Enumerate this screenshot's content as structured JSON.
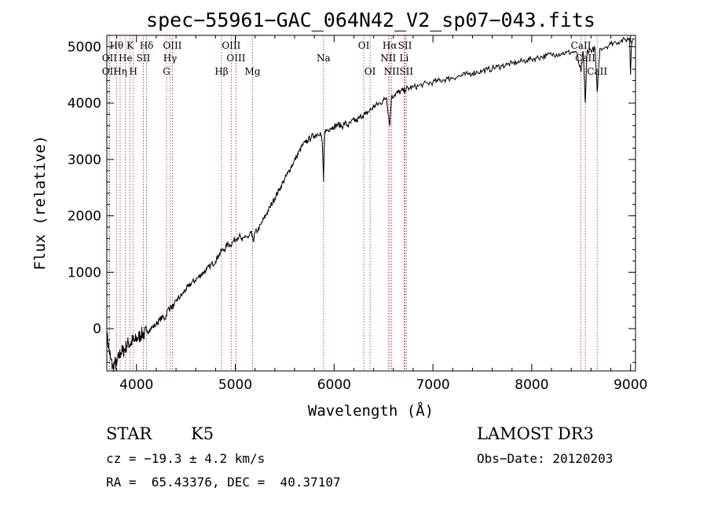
{
  "chart_data": {
    "type": "line",
    "title": "spec−55961−GAC_064N42_V2_sp07−043.fits",
    "xlabel": "Wavelength (Å)",
    "ylabel": "Flux (relative)",
    "xlim": [
      3700,
      9050
    ],
    "ylim": [
      -750,
      5200
    ],
    "x_ticks": [
      4000,
      5000,
      6000,
      7000,
      8000,
      9000
    ],
    "x_tick_labels": [
      "4000",
      "5000",
      "6000",
      "7000",
      "8000",
      "9000"
    ],
    "y_ticks": [
      0,
      1000,
      2000,
      3000,
      4000,
      5000
    ],
    "y_tick_labels": [
      "0",
      "1000",
      "2000",
      "3000",
      "4000",
      "5000"
    ],
    "series": [
      {
        "name": "flux",
        "points": [
          [
            3700,
            -100
          ],
          [
            3720,
            -350
          ],
          [
            3740,
            -550
          ],
          [
            3760,
            -700
          ],
          [
            3780,
            -600
          ],
          [
            3800,
            -650
          ],
          [
            3820,
            -500
          ],
          [
            3840,
            -420
          ],
          [
            3860,
            -400
          ],
          [
            3880,
            -380
          ],
          [
            3900,
            -300
          ],
          [
            3920,
            -250
          ],
          [
            3940,
            -280
          ],
          [
            3960,
            -200
          ],
          [
            3980,
            -230
          ],
          [
            4000,
            -180
          ],
          [
            4020,
            -150
          ],
          [
            4040,
            -120
          ],
          [
            4060,
            -80
          ],
          [
            4080,
            -100
          ],
          [
            4100,
            -50
          ],
          [
            4130,
            -20
          ],
          [
            4160,
            20
          ],
          [
            4200,
            80
          ],
          [
            4230,
            150
          ],
          [
            4260,
            200
          ],
          [
            4290,
            180
          ],
          [
            4320,
            350
          ],
          [
            4350,
            380
          ],
          [
            4380,
            400
          ],
          [
            4410,
            520
          ],
          [
            4440,
            560
          ],
          [
            4470,
            620
          ],
          [
            4500,
            700
          ],
          [
            4530,
            750
          ],
          [
            4560,
            820
          ],
          [
            4590,
            850
          ],
          [
            4620,
            900
          ],
          [
            4650,
            950
          ],
          [
            4680,
            1000
          ],
          [
            4710,
            1050
          ],
          [
            4740,
            1100
          ],
          [
            4770,
            1150
          ],
          [
            4800,
            1200
          ],
          [
            4830,
            1300
          ],
          [
            4860,
            1380
          ],
          [
            4890,
            1400
          ],
          [
            4920,
            1500
          ],
          [
            4950,
            1480
          ],
          [
            4980,
            1550
          ],
          [
            5010,
            1600
          ],
          [
            5040,
            1650
          ],
          [
            5070,
            1550
          ],
          [
            5100,
            1650
          ],
          [
            5130,
            1600
          ],
          [
            5160,
            1700
          ],
          [
            5180,
            1550
          ],
          [
            5200,
            1700
          ],
          [
            5230,
            1750
          ],
          [
            5260,
            1850
          ],
          [
            5290,
            1950
          ],
          [
            5320,
            2050
          ],
          [
            5350,
            2150
          ],
          [
            5380,
            2250
          ],
          [
            5410,
            2350
          ],
          [
            5440,
            2450
          ],
          [
            5470,
            2550
          ],
          [
            5500,
            2650
          ],
          [
            5530,
            2750
          ],
          [
            5560,
            2850
          ],
          [
            5590,
            2950
          ],
          [
            5620,
            3050
          ],
          [
            5650,
            3150
          ],
          [
            5680,
            3250
          ],
          [
            5710,
            3300
          ],
          [
            5740,
            3350
          ],
          [
            5770,
            3400
          ],
          [
            5800,
            3420
          ],
          [
            5830,
            3450
          ],
          [
            5860,
            3480
          ],
          [
            5880,
            3300
          ],
          [
            5893,
            2600
          ],
          [
            5905,
            3500
          ],
          [
            5930,
            3520
          ],
          [
            5960,
            3550
          ],
          [
            5990,
            3580
          ],
          [
            6020,
            3600
          ],
          [
            6050,
            3620
          ],
          [
            6080,
            3580
          ],
          [
            6110,
            3650
          ],
          [
            6140,
            3600
          ],
          [
            6170,
            3650
          ],
          [
            6200,
            3700
          ],
          [
            6230,
            3680
          ],
          [
            6260,
            3750
          ],
          [
            6290,
            3780
          ],
          [
            6320,
            3800
          ],
          [
            6350,
            3850
          ],
          [
            6380,
            3900
          ],
          [
            6410,
            3950
          ],
          [
            6440,
            3980
          ],
          [
            6470,
            4000
          ],
          [
            6500,
            4050
          ],
          [
            6530,
            4100
          ],
          [
            6563,
            3600
          ],
          [
            6580,
            4100
          ],
          [
            6610,
            4150
          ],
          [
            6640,
            4180
          ],
          [
            6670,
            4200
          ],
          [
            6700,
            4220
          ],
          [
            6730,
            4250
          ],
          [
            6760,
            4260
          ],
          [
            6800,
            4280
          ],
          [
            6850,
            4300
          ],
          [
            6900,
            4330
          ],
          [
            6950,
            4350
          ],
          [
            7000,
            4370
          ],
          [
            7050,
            4390
          ],
          [
            7100,
            4410
          ],
          [
            7150,
            4430
          ],
          [
            7200,
            4450
          ],
          [
            7250,
            4470
          ],
          [
            7300,
            4490
          ],
          [
            7350,
            4510
          ],
          [
            7400,
            4530
          ],
          [
            7450,
            4550
          ],
          [
            7500,
            4570
          ],
          [
            7550,
            4590
          ],
          [
            7600,
            4610
          ],
          [
            7650,
            4640
          ],
          [
            7700,
            4660
          ],
          [
            7750,
            4680
          ],
          [
            7800,
            4700
          ],
          [
            7850,
            4720
          ],
          [
            7900,
            4740
          ],
          [
            7950,
            4760
          ],
          [
            8000,
            4780
          ],
          [
            8050,
            4800
          ],
          [
            8100,
            4820
          ],
          [
            8150,
            4840
          ],
          [
            8200,
            4860
          ],
          [
            8250,
            4870
          ],
          [
            8300,
            4880
          ],
          [
            8350,
            4890
          ],
          [
            8400,
            4900
          ],
          [
            8450,
            4910
          ],
          [
            8498,
            4550
          ],
          [
            8520,
            4920
          ],
          [
            8542,
            4000
          ],
          [
            8560,
            4930
          ],
          [
            8600,
            4940
          ],
          [
            8640,
            4960
          ],
          [
            8662,
            4200
          ],
          [
            8690,
            4970
          ],
          [
            8750,
            5000
          ],
          [
            8800,
            5050
          ],
          [
            8850,
            5080
          ],
          [
            8900,
            5100
          ],
          [
            8950,
            5120
          ],
          [
            8990,
            5150
          ],
          [
            9000,
            4500
          ],
          [
            9010,
            5100
          ],
          [
            9040,
            5130
          ]
        ]
      }
    ],
    "line_markers": [
      {
        "wavelength": 3798,
        "name": "Hθ",
        "row": 1
      },
      {
        "wavelength": 3727,
        "name": "OII",
        "row": 2
      },
      {
        "wavelength": 3727,
        "name": "OII",
        "row": 3
      },
      {
        "wavelength": 3835,
        "name": "Hη",
        "row": 3
      },
      {
        "wavelength": 3889,
        "name": "He",
        "row": 2
      },
      {
        "wavelength": 3934,
        "name": "K",
        "row": 1
      },
      {
        "wavelength": 3968,
        "name": "H",
        "row": 3
      },
      {
        "wavelength": 4070,
        "name": "SII",
        "row": 2
      },
      {
        "wavelength": 4102,
        "name": "Hδ",
        "row": 1
      },
      {
        "wavelength": 4304,
        "name": "G",
        "row": 3
      },
      {
        "wavelength": 4340,
        "name": "Hγ",
        "row": 2
      },
      {
        "wavelength": 4363,
        "name": "OIII",
        "row": 1
      },
      {
        "wavelength": 4861,
        "name": "Hβ",
        "row": 3
      },
      {
        "wavelength": 4959,
        "name": "OIII",
        "row": 1
      },
      {
        "wavelength": 5007,
        "name": "OIII",
        "row": 2
      },
      {
        "wavelength": 5175,
        "name": "Mg",
        "row": 3
      },
      {
        "wavelength": 5893,
        "name": "Na",
        "row": 2
      },
      {
        "wavelength": 6300,
        "name": "OI",
        "row": 1
      },
      {
        "wavelength": 6364,
        "name": "OI",
        "row": 3
      },
      {
        "wavelength": 6548,
        "name": "NII",
        "row": 2
      },
      {
        "wavelength": 6563,
        "name": "Hα",
        "row": 1
      },
      {
        "wavelength": 6583,
        "name": "NII",
        "row": 3
      },
      {
        "wavelength": 6708,
        "name": "Li",
        "row": 2
      },
      {
        "wavelength": 6717,
        "name": "SII",
        "row": 1
      },
      {
        "wavelength": 6731,
        "name": "SII",
        "row": 3
      },
      {
        "wavelength": 8498,
        "name": "CaII",
        "row": 1
      },
      {
        "wavelength": 8542,
        "name": "CaII",
        "row": 2
      },
      {
        "wavelength": 8662,
        "name": "CaII",
        "row": 3
      }
    ]
  },
  "info": {
    "object_class": "STAR",
    "subclass": "K5",
    "survey": "LAMOST DR3",
    "velocity": "cz = −19.3 ± 4.2 km/s",
    "obs_date": "Obs−Date: 20120203",
    "coords": "RA =  65.43376, DEC =  40.37107"
  },
  "colors": {
    "line_marker": "#b22222",
    "spectrum": "#000000"
  }
}
